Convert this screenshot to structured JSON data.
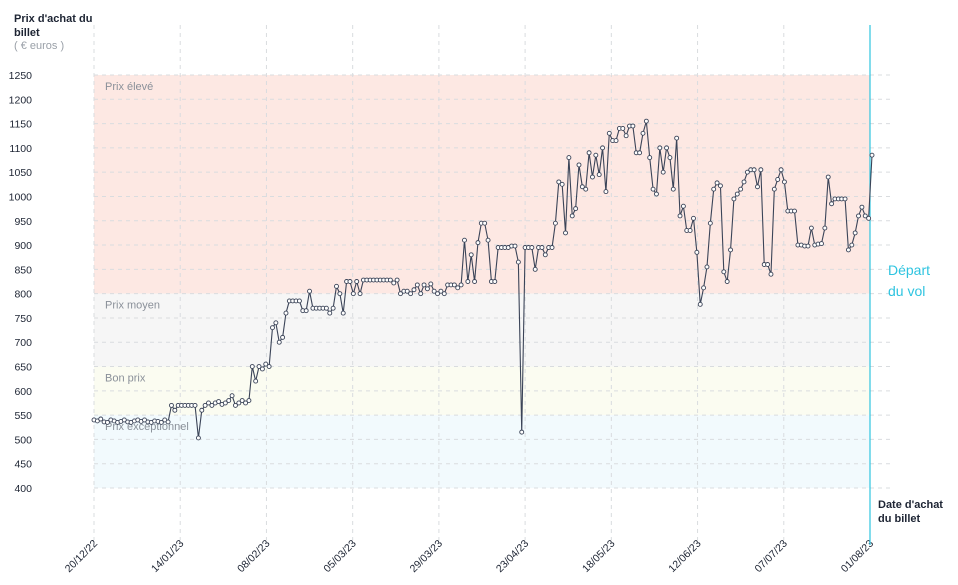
{
  "chart_data": {
    "type": "line",
    "ylabel": "Prix d'achat du billet",
    "yunit": "( € euros )",
    "xlabel": "Date d'achat du billet",
    "ylim": [
      400,
      1250
    ],
    "yticks": [
      400,
      450,
      500,
      550,
      600,
      650,
      700,
      750,
      800,
      850,
      900,
      950,
      1000,
      1050,
      1100,
      1150,
      1200,
      1250
    ],
    "xticks": [
      "20/12/22",
      "14/01/23",
      "08/02/23",
      "05/03/23",
      "29/03/23",
      "23/04/23",
      "18/05/23",
      "12/06/23",
      "07/07/23",
      "01/08/23"
    ],
    "grid": true,
    "zones": [
      {
        "label": "Prix élevé",
        "from": 800,
        "to": 1250,
        "color": "#fde8e3"
      },
      {
        "label": "Prix moyen",
        "from": 650,
        "to": 800,
        "color": "#f6f6f6"
      },
      {
        "label": "Bon prix",
        "from": 550,
        "to": 650,
        "color": "#fbfcf1"
      },
      {
        "label": "Prix exceptionnel",
        "from": 400,
        "to": 550,
        "color": "#f2fafd"
      }
    ],
    "annotation": {
      "label": "Départ du vol",
      "date": "01/08/23",
      "color": "#2ec4e0"
    },
    "line_color": "#3b4458",
    "values": [
      540,
      538,
      542,
      536,
      535,
      540,
      538,
      535,
      537,
      540,
      536,
      535,
      538,
      540,
      537,
      540,
      536,
      535,
      538,
      537,
      535,
      540,
      536,
      570,
      560,
      570,
      570,
      570,
      570,
      570,
      570,
      503,
      560,
      570,
      575,
      570,
      575,
      578,
      572,
      575,
      580,
      590,
      570,
      575,
      580,
      575,
      580,
      650,
      620,
      650,
      645,
      655,
      650,
      730,
      740,
      700,
      710,
      760,
      785,
      785,
      785,
      785,
      765,
      765,
      805,
      770,
      770,
      770,
      770,
      770,
      760,
      770,
      815,
      800,
      760,
      825,
      825,
      800,
      825,
      800,
      828,
      828,
      828,
      828,
      828,
      828,
      828,
      828,
      828,
      822,
      828,
      800,
      805,
      805,
      800,
      808,
      818,
      800,
      818,
      810,
      820,
      805,
      800,
      805,
      800,
      818,
      818,
      818,
      812,
      818,
      910,
      825,
      880,
      825,
      905,
      945,
      945,
      910,
      825,
      825,
      895,
      895,
      895,
      895,
      898,
      898,
      865,
      515,
      895,
      895,
      895,
      850,
      895,
      895,
      880,
      895,
      895,
      945,
      1030,
      1025,
      925,
      1080,
      960,
      975,
      1065,
      1020,
      1015,
      1090,
      1040,
      1085,
      1045,
      1100,
      1010,
      1130,
      1115,
      1115,
      1140,
      1140,
      1125,
      1145,
      1145,
      1090,
      1090,
      1130,
      1155,
      1080,
      1015,
      1005,
      1100,
      1050,
      1100,
      1080,
      1015,
      1120,
      960,
      980,
      930,
      930,
      955,
      885,
      778,
      812,
      855,
      945,
      1015,
      1028,
      1022,
      845,
      825,
      890,
      995,
      1005,
      1015,
      1030,
      1050,
      1055,
      1055,
      1020,
      1055,
      860,
      860,
      840,
      1015,
      1035,
      1055,
      1030,
      970,
      970,
      970,
      900,
      900,
      898,
      898,
      935,
      900,
      902,
      903,
      935,
      1040,
      985,
      995,
      995,
      995,
      995,
      890,
      900,
      925,
      960,
      978,
      960,
      955,
      1085
    ]
  }
}
